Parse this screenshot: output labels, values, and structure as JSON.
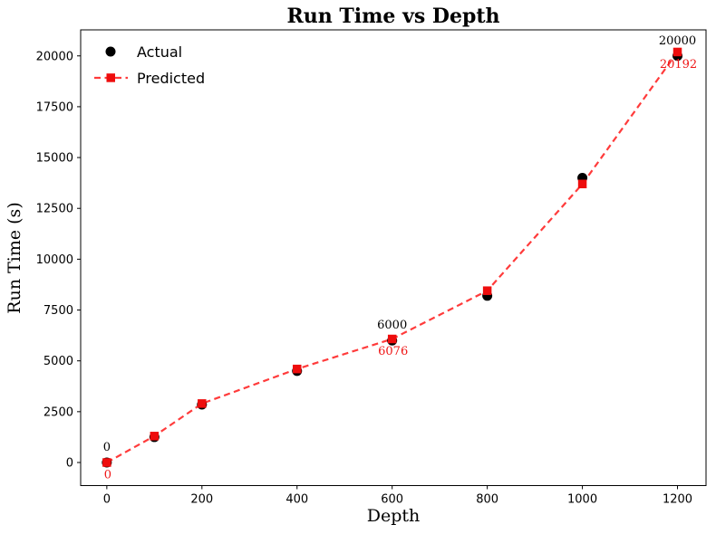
{
  "chart_data": {
    "type": "line",
    "title": "Run Time vs Depth",
    "xlabel": "Depth",
    "ylabel": "Run Time (s)",
    "x": [
      0,
      100,
      200,
      400,
      600,
      800,
      1000,
      1200
    ],
    "series": [
      {
        "name": "Actual",
        "style": "scatter",
        "marker": "circle",
        "color": "#000000",
        "values": [
          0,
          1250,
          2850,
          4500,
          6000,
          8200,
          14000,
          20000
        ]
      },
      {
        "name": "Predicted",
        "style": "dashed-line",
        "marker": "square",
        "color": "#ff3b3b",
        "marker_color": "#ee0d0d",
        "values": [
          0,
          1300,
          2900,
          4600,
          6076,
          8450,
          13700,
          20192
        ]
      }
    ],
    "annotations": [
      {
        "x": 0,
        "actual_label": "0",
        "predicted_label": "0"
      },
      {
        "x": 600,
        "actual_label": "6000",
        "predicted_label": "6076"
      },
      {
        "x": 1200,
        "actual_label": "20000",
        "predicted_label": "20192"
      }
    ],
    "annotation_colors": {
      "actual": "#000000",
      "predicted": "#ef1616"
    },
    "x_ticks": [
      0,
      200,
      400,
      600,
      800,
      1000,
      1200
    ],
    "y_ticks": [
      0,
      2500,
      5000,
      7500,
      10000,
      12500,
      15000,
      17500,
      20000
    ],
    "xlim": [
      -55,
      1260
    ],
    "ylim": [
      -1135,
      21280
    ],
    "grid": false,
    "legend_position": "upper-left",
    "legend": [
      "Actual",
      "Predicted"
    ]
  }
}
